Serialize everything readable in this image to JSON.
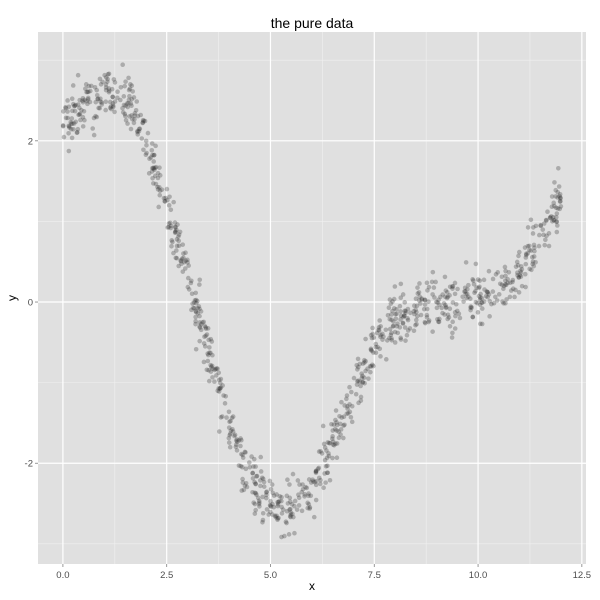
{
  "chart_data": {
    "type": "scatter",
    "title": "the pure data",
    "xlabel": "x",
    "ylabel": "y",
    "xlim": [
      -0.6,
      12.6
    ],
    "ylim": [
      -3.25,
      3.35
    ],
    "x_ticks": [
      0.0,
      2.5,
      5.0,
      7.5,
      10.0,
      12.5
    ],
    "x_tick_labels": [
      "0.0",
      "2.5",
      "5.0",
      "7.5",
      "10.0",
      "12.5"
    ],
    "y_ticks": [
      -2,
      0,
      2
    ],
    "y_tick_labels": [
      "-2",
      "0",
      "2"
    ],
    "grid": true,
    "legend": "none",
    "point_count": 1000,
    "point_color": "#333333",
    "point_alpha": 0.3,
    "panel_background": "#e0e0e0",
    "grid_color": "#ffffff",
    "trend_x": [
      0.0,
      0.5,
      1.0,
      1.5,
      2.0,
      2.5,
      3.0,
      3.5,
      4.0,
      4.5,
      5.0,
      5.5,
      6.0,
      6.5,
      7.0,
      7.5,
      8.0,
      8.5,
      9.0,
      9.5,
      10.0,
      10.5,
      11.0,
      11.5,
      12.0
    ],
    "trend_y": [
      2.2,
      2.45,
      2.6,
      2.5,
      2.0,
      1.2,
      0.35,
      -0.55,
      -1.5,
      -2.15,
      -2.55,
      -2.55,
      -2.3,
      -1.75,
      -1.15,
      -0.55,
      -0.25,
      -0.1,
      -0.05,
      -0.02,
      0.05,
      0.15,
      0.4,
      0.85,
      1.35
    ],
    "scatter_sd": 0.17
  }
}
